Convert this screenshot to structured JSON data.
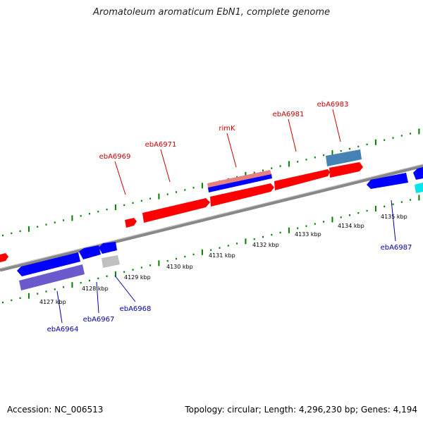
{
  "title": "Aromatoleum aromaticum EbN1, complete genome",
  "footer": {
    "accession": "Accession: NC_006513",
    "summary": "Topology: circular; Length: 4,296,230 bp; Genes: 4,194"
  },
  "colors": {
    "forward": "#ff0000",
    "reverse": "#0000ff",
    "steelblue": "#4682b4",
    "slateblue": "#6a5acd",
    "gray": "#c0c0c0",
    "cyan": "#00e5ee",
    "label_top": "#cc0000",
    "label_bottom": "#0000aa",
    "tick": "#008000"
  },
  "kbp_ticks": [
    "4127 kbp",
    "4128 kbp",
    "4129 kbp",
    "4130 kbp",
    "4131 kbp",
    "4132 kbp",
    "4133 kbp",
    "4134 kbp",
    "4135 kbp"
  ],
  "top_labels": [
    "ebA6969",
    "ebA6971",
    "rimK",
    "ebA6981",
    "ebA6983"
  ],
  "bottom_labels": [
    "ebA6964",
    "ebA6967",
    "ebA6968",
    "ebA6987"
  ]
}
